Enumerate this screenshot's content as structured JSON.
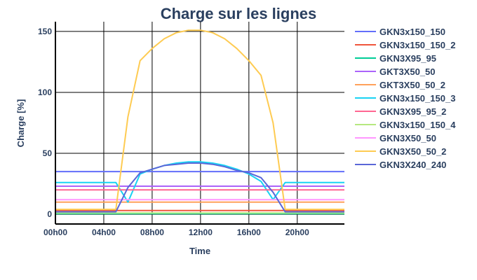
{
  "chart_data": {
    "type": "line",
    "title": "Charge sur les lignes",
    "xlabel": "Time",
    "ylabel": "Charge [%]",
    "xlim": [
      0,
      23.9
    ],
    "ylim": [
      -8,
      158
    ],
    "xticks": [
      0,
      4,
      8,
      12,
      16,
      20
    ],
    "xtick_labels": [
      "00h00",
      "04h00",
      "08h00",
      "12h00",
      "16h00",
      "20h00"
    ],
    "yticks": [
      0,
      50,
      100,
      150
    ],
    "ytick_labels": [
      "0",
      "50",
      "100",
      "150"
    ],
    "grid": true,
    "legend_position": "right",
    "x": [
      0,
      1,
      2,
      3,
      4,
      5,
      6,
      7,
      8,
      9,
      10,
      11,
      12,
      13,
      14,
      15,
      16,
      17,
      18,
      19,
      20,
      21,
      22,
      23,
      23.9
    ],
    "series": [
      {
        "name": "GKN3x150_150",
        "color": "#636efa",
        "values": [
          35,
          35,
          35,
          35,
          35,
          35,
          35,
          35,
          35,
          35,
          35,
          35,
          35,
          35,
          35,
          35,
          35,
          35,
          35,
          35,
          35,
          35,
          35,
          35,
          35
        ]
      },
      {
        "name": "GKN3x150_150_2",
        "color": "#ef553b",
        "values": [
          3,
          3,
          3,
          3,
          3,
          3,
          3,
          3,
          3,
          3,
          3,
          3,
          3,
          3,
          3,
          3,
          3,
          3,
          3,
          3,
          3,
          3,
          3,
          3,
          3
        ]
      },
      {
        "name": "GKN3X95_95",
        "color": "#00cc96",
        "values": [
          0.5,
          0.5,
          0.5,
          0.5,
          0.5,
          0.5,
          0.5,
          0.5,
          0.5,
          0.5,
          0.5,
          0.5,
          0.5,
          0.5,
          0.5,
          0.5,
          0.5,
          0.5,
          0.5,
          0.5,
          0.5,
          0.5,
          0.5,
          0.5,
          0.5
        ]
      },
      {
        "name": "GKT3X50_50",
        "color": "#ab63fa",
        "values": [
          23,
          23,
          23,
          23,
          23,
          23,
          23,
          23,
          23,
          23,
          23,
          23,
          23,
          23,
          23,
          23,
          23,
          23,
          23,
          23,
          23,
          23,
          23,
          23,
          23
        ]
      },
      {
        "name": "GKT3X50_50_2",
        "color": "#ffa15a",
        "values": [
          10,
          10,
          10,
          10,
          10,
          10,
          10,
          10,
          10,
          10,
          10,
          10,
          10,
          10,
          10,
          10,
          10,
          10,
          10,
          10,
          10,
          10,
          10,
          10,
          10
        ]
      },
      {
        "name": "GKN3x150_150_3",
        "color": "#19d3f3",
        "values": [
          26,
          26,
          26,
          26,
          26,
          26,
          10,
          33,
          37,
          40,
          42,
          43,
          43,
          42,
          40,
          37,
          33,
          27,
          12,
          26,
          26,
          26,
          26,
          26,
          26
        ]
      },
      {
        "name": "GKN3X95_95_2",
        "color": "#ff6692",
        "values": [
          20,
          20,
          20,
          20,
          20,
          20,
          20,
          20,
          20,
          20,
          20,
          20,
          20,
          20,
          20,
          20,
          20,
          20,
          20,
          20,
          20,
          20,
          20,
          20,
          20
        ]
      },
      {
        "name": "GKN3x150_150_4",
        "color": "#b6e880",
        "values": [
          1,
          1,
          1,
          1,
          1,
          1,
          1,
          1,
          1,
          1,
          1,
          1,
          1,
          1,
          1,
          1,
          1,
          1,
          1,
          1,
          1,
          1,
          1,
          1,
          1
        ]
      },
      {
        "name": "GKN3X50_50",
        "color": "#ff97ff",
        "values": [
          12,
          12,
          12,
          12,
          12,
          12,
          12,
          12,
          12,
          12,
          12,
          12,
          12,
          12,
          12,
          12,
          12,
          12,
          12,
          12,
          12,
          12,
          12,
          12,
          12
        ]
      },
      {
        "name": "GKN3X50_50_2",
        "color": "#fecb52",
        "values": [
          4,
          4,
          4,
          4,
          4,
          4,
          80,
          126,
          136,
          144,
          149,
          151,
          151,
          149,
          144,
          136,
          126,
          114,
          75,
          4,
          4,
          4,
          4,
          4,
          4
        ]
      },
      {
        "name": "GKN3X240_240",
        "color": "#5a67d8",
        "values": [
          2,
          2,
          2,
          2,
          2,
          2,
          22,
          34,
          37,
          40,
          41,
          42,
          42,
          41,
          39,
          36,
          34,
          30,
          18,
          2,
          2,
          2,
          2,
          2,
          2
        ]
      }
    ]
  }
}
